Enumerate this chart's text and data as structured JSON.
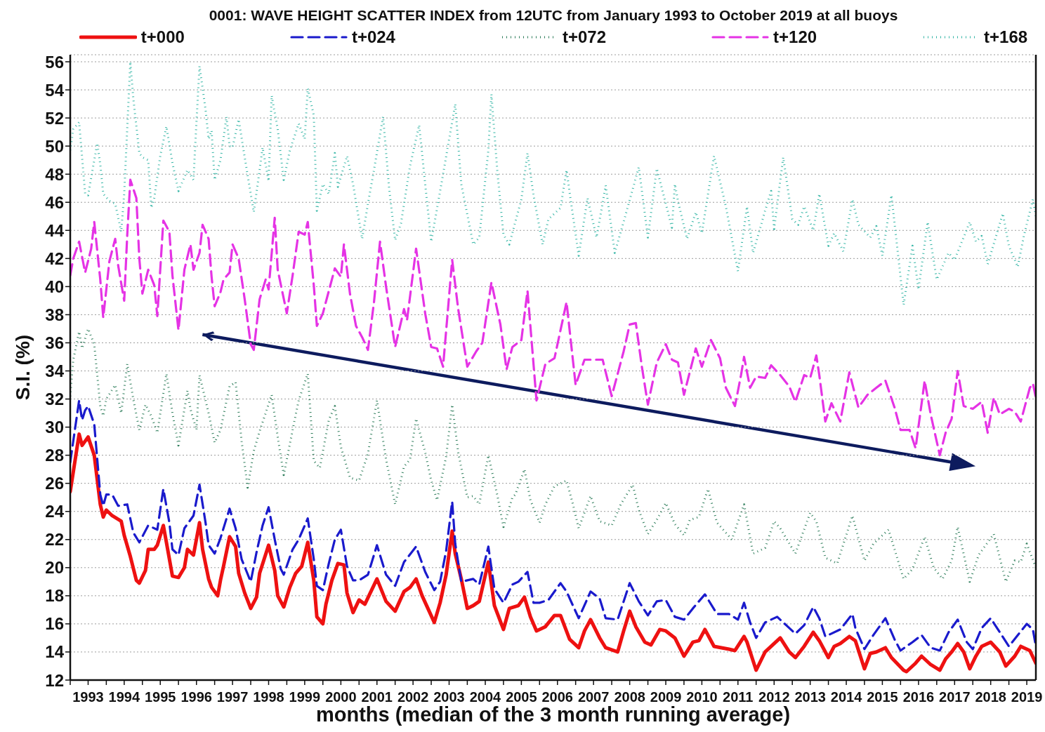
{
  "chart_data": {
    "type": "line",
    "title": "0001: WAVE HEIGHT SCATTER INDEX from 12UTC from January 1993 to October 2019 at all buoys",
    "xlabel": "months (median of the 3 month running average)",
    "ylabel": "S.I. (%)",
    "xlim": [
      "1993-01",
      "2019-10"
    ],
    "ylim": [
      12,
      56.5
    ],
    "xticks": [
      {
        "value": "1993-01",
        "label": null
      },
      {
        "value": "1993-07",
        "label": "1993"
      },
      {
        "value": "1994-01",
        "label": null
      },
      {
        "value": "1994-07",
        "label": "1994"
      },
      {
        "value": "1995-01",
        "label": null
      },
      {
        "value": "1995-07",
        "label": "1995"
      },
      {
        "value": "1996-01",
        "label": null
      },
      {
        "value": "1996-07",
        "label": "1996"
      },
      {
        "value": "1997-01",
        "label": null
      },
      {
        "value": "1997-07",
        "label": "1997"
      },
      {
        "value": "1998-01",
        "label": null
      },
      {
        "value": "1998-07",
        "label": "1998"
      },
      {
        "value": "1999-01",
        "label": null
      },
      {
        "value": "1999-07",
        "label": "1999"
      },
      {
        "value": "2000-01",
        "label": null
      },
      {
        "value": "2000-07",
        "label": "2000"
      },
      {
        "value": "2001-01",
        "label": null
      },
      {
        "value": "2001-07",
        "label": "2001"
      },
      {
        "value": "2002-01",
        "label": null
      },
      {
        "value": "2002-07",
        "label": "2002"
      },
      {
        "value": "2003-01",
        "label": null
      },
      {
        "value": "2003-07",
        "label": "2003"
      },
      {
        "value": "2004-01",
        "label": null
      },
      {
        "value": "2004-07",
        "label": "2004"
      },
      {
        "value": "2005-01",
        "label": null
      },
      {
        "value": "2005-07",
        "label": "2005"
      },
      {
        "value": "2006-01",
        "label": null
      },
      {
        "value": "2006-07",
        "label": "2006"
      },
      {
        "value": "2007-01",
        "label": null
      },
      {
        "value": "2007-07",
        "label": "2007"
      },
      {
        "value": "2008-01",
        "label": null
      },
      {
        "value": "2008-07",
        "label": "2008"
      },
      {
        "value": "2009-01",
        "label": null
      },
      {
        "value": "2009-07",
        "label": "2009"
      },
      {
        "value": "2010-01",
        "label": null
      },
      {
        "value": "2010-07",
        "label": "2010"
      },
      {
        "value": "2011-01",
        "label": null
      },
      {
        "value": "2011-07",
        "label": "2011"
      },
      {
        "value": "2012-01",
        "label": null
      },
      {
        "value": "2012-07",
        "label": "2012"
      },
      {
        "value": "2013-01",
        "label": null
      },
      {
        "value": "2013-07",
        "label": "2013"
      },
      {
        "value": "2014-01",
        "label": null
      },
      {
        "value": "2014-07",
        "label": "2014"
      },
      {
        "value": "2015-01",
        "label": null
      },
      {
        "value": "2015-07",
        "label": "2015"
      },
      {
        "value": "2016-01",
        "label": null
      },
      {
        "value": "2016-07",
        "label": "2016"
      },
      {
        "value": "2017-01",
        "label": null
      },
      {
        "value": "2017-07",
        "label": "2017"
      },
      {
        "value": "2018-01",
        "label": null
      },
      {
        "value": "2018-07",
        "label": "2018"
      },
      {
        "value": "2019-01",
        "label": null
      },
      {
        "value": "2019-07",
        "label": "2019"
      }
    ],
    "yticks": [
      12,
      14,
      16,
      18,
      20,
      22,
      24,
      26,
      28,
      30,
      32,
      34,
      36,
      38,
      40,
      42,
      44,
      46,
      48,
      50,
      52,
      54,
      56
    ],
    "grid": true,
    "legend": "top",
    "marker": "none",
    "series": [
      {
        "name": "t+000",
        "color": "#ee1111",
        "line_style": "solid",
        "x": [
          "1993-01",
          "1993-04",
          "1993-05",
          "1993-07",
          "1993-09",
          "1993-11",
          "1993-12",
          "1994-01",
          "1994-03",
          "1994-06",
          "1994-07",
          "1994-09",
          "1994-11",
          "1994-12",
          "1995-02",
          "1995-03",
          "1995-05",
          "1995-06",
          "1995-08",
          "1995-09",
          "1995-11",
          "1996-01",
          "1996-03",
          "1996-04",
          "1996-06",
          "1996-08",
          "1996-09",
          "1996-11",
          "1996-12",
          "1997-02",
          "1997-03",
          "1997-04",
          "1997-06",
          "1997-08",
          "1997-09",
          "1997-11",
          "1998-01",
          "1998-03",
          "1998-04",
          "1998-07",
          "1998-09",
          "1998-10",
          "1998-12",
          "1999-02",
          "1999-04",
          "1999-06",
          "1999-08",
          "1999-10",
          "1999-11",
          "2000-01",
          "2000-02",
          "2000-04",
          "2000-06",
          "2000-08",
          "2000-09",
          "2000-11",
          "2001-01",
          "2001-03",
          "2001-07",
          "2001-10",
          "2002-01",
          "2002-04",
          "2002-06",
          "2002-08",
          "2002-10",
          "2003-02",
          "2003-04",
          "2003-06",
          "2003-08",
          "2003-09",
          "2003-11",
          "2004-01",
          "2004-03",
          "2004-05",
          "2004-08",
          "2004-10",
          "2005-01",
          "2005-03",
          "2005-06",
          "2005-08",
          "2005-10",
          "2005-12",
          "2006-03",
          "2006-06",
          "2006-08",
          "2006-11",
          "2007-02",
          "2007-04",
          "2007-06",
          "2007-09",
          "2007-11",
          "2008-03",
          "2008-05",
          "2008-07",
          "2008-09",
          "2008-12",
          "2009-02",
          "2009-05",
          "2009-07",
          "2009-10",
          "2010-01",
          "2010-04",
          "2010-06",
          "2010-08",
          "2010-11",
          "2011-04",
          "2011-06",
          "2011-09",
          "2011-10",
          "2012-01",
          "2012-04",
          "2012-09",
          "2012-12",
          "2013-02",
          "2013-05",
          "2013-08",
          "2013-10",
          "2014-01",
          "2014-03",
          "2014-05",
          "2014-08",
          "2014-10",
          "2015-01",
          "2015-03",
          "2015-05",
          "2015-08",
          "2015-10",
          "2016-02",
          "2016-03",
          "2016-06",
          "2016-08",
          "2016-11",
          "2017-02",
          "2017-04",
          "2017-06",
          "2017-08",
          "2017-10",
          "2017-12",
          "2018-02",
          "2018-04",
          "2018-07",
          "2018-10",
          "2018-12",
          "2019-03",
          "2019-05",
          "2019-08",
          "2019-10"
        ],
        "values": [
          25.4,
          29.5,
          28.7,
          29.3,
          28.0,
          24.5,
          23.6,
          24.1,
          23.7,
          23.3,
          22.3,
          20.8,
          19.1,
          18.9,
          19.8,
          21.3,
          21.3,
          21.6,
          23.0,
          21.8,
          19.4,
          19.3,
          20.0,
          21.3,
          20.9,
          23.2,
          21.3,
          19.2,
          18.6,
          18.0,
          19.1,
          20.1,
          22.2,
          21.5,
          19.6,
          18.2,
          17.1,
          17.9,
          19.6,
          21.6,
          19.8,
          18.0,
          17.2,
          18.6,
          19.6,
          20.1,
          21.8,
          19.1,
          16.5,
          16.0,
          17.4,
          19.1,
          20.3,
          20.2,
          18.2,
          16.8,
          17.7,
          17.4,
          19.2,
          17.6,
          16.9,
          18.3,
          18.6,
          19.2,
          18.0,
          16.1,
          17.5,
          19.5,
          22.6,
          21.0,
          19.2,
          17.1,
          17.3,
          17.6,
          20.4,
          17.3,
          15.6,
          17.1,
          17.3,
          17.9,
          16.5,
          15.5,
          15.8,
          16.6,
          16.6,
          14.9,
          14.3,
          15.5,
          16.3,
          15.0,
          14.3,
          14.0,
          15.5,
          16.9,
          15.8,
          14.7,
          14.5,
          15.6,
          15.5,
          15.0,
          13.7,
          14.7,
          14.8,
          15.6,
          14.4,
          14.2,
          14.1,
          15.1,
          14.7,
          12.7,
          14.0,
          15.0,
          14.0,
          13.6,
          14.4,
          15.4,
          14.8,
          13.6,
          14.4,
          14.6,
          15.1,
          14.8,
          12.8,
          13.9,
          14.0,
          14.3,
          13.6,
          12.7,
          12.6,
          13.2,
          13.7,
          13.1,
          12.7,
          13.5,
          14.0,
          14.6,
          14.0,
          12.8,
          13.7,
          14.4,
          14.7,
          14.0,
          13.0,
          13.7,
          14.4,
          14.1,
          13.2
        ]
      },
      {
        "name": "t+024",
        "color": "#1a1acc",
        "line_style": "dashed",
        "x": [
          "1993-01",
          "1993-04",
          "1993-05",
          "1993-06",
          "1993-07",
          "1993-09",
          "1993-11",
          "1993-12",
          "1994-01",
          "1994-03",
          "1994-05",
          "1994-08",
          "1994-10",
          "1994-12",
          "1995-03",
          "1995-06",
          "1995-08",
          "1995-10",
          "1995-11",
          "1996-01",
          "1996-03",
          "1996-06",
          "1996-08",
          "1996-10",
          "1996-11",
          "1997-01",
          "1997-03",
          "1997-06",
          "1997-08",
          "1997-10",
          "1998-01",
          "1998-03",
          "1998-05",
          "1998-07",
          "1998-09",
          "1998-11",
          "1998-12",
          "1999-03",
          "1999-05",
          "1999-08",
          "1999-10",
          "1999-11",
          "2000-01",
          "2000-03",
          "2000-05",
          "2000-07",
          "2000-09",
          "2000-11",
          "2001-01",
          "2001-04",
          "2001-07",
          "2001-10",
          "2002-01",
          "2002-04",
          "2002-08",
          "2002-11",
          "2003-02",
          "2003-04",
          "2003-06",
          "2003-08",
          "2003-09",
          "2003-11",
          "2004-03",
          "2004-05",
          "2004-08",
          "2004-10",
          "2005-01",
          "2005-04",
          "2005-06",
          "2005-09",
          "2005-11",
          "2006-01",
          "2006-04",
          "2006-08",
          "2006-10",
          "2007-02",
          "2007-06",
          "2007-09",
          "2007-11",
          "2008-03",
          "2008-07",
          "2008-10",
          "2009-01",
          "2009-04",
          "2009-07",
          "2009-10",
          "2010-01",
          "2010-04",
          "2010-08",
          "2010-12",
          "2011-04",
          "2011-07",
          "2011-09",
          "2011-11",
          "2012-01",
          "2012-04",
          "2012-08",
          "2012-11",
          "2013-02",
          "2013-05",
          "2013-08",
          "2013-10",
          "2013-12",
          "2014-05",
          "2014-09",
          "2014-10",
          "2015-01",
          "2015-04",
          "2015-08",
          "2015-11",
          "2016-01",
          "2016-05",
          "2016-08",
          "2016-11",
          "2017-02",
          "2017-05",
          "2017-08",
          "2017-11",
          "2018-01",
          "2018-04",
          "2018-07",
          "2018-10",
          "2019-01",
          "2019-04",
          "2019-07",
          "2019-09",
          "2019-10"
        ],
        "values": [
          27.5,
          31.9,
          30.5,
          31.2,
          31.5,
          30.2,
          25.2,
          24.4,
          25.2,
          25.2,
          24.4,
          24.5,
          22.5,
          21.8,
          23.0,
          22.7,
          25.6,
          23.2,
          21.3,
          20.9,
          22.8,
          23.7,
          25.9,
          23.2,
          21.6,
          21.0,
          22.1,
          24.2,
          22.8,
          20.6,
          19.0,
          21.1,
          23.0,
          24.3,
          22.0,
          19.9,
          19.5,
          21.3,
          22.0,
          23.5,
          20.6,
          18.7,
          18.4,
          20.3,
          22.0,
          22.7,
          20.1,
          19.1,
          19.1,
          19.5,
          21.6,
          19.5,
          18.7,
          20.4,
          21.5,
          19.7,
          18.4,
          19.0,
          21.2,
          24.7,
          21.7,
          19.0,
          19.2,
          18.8,
          21.5,
          18.5,
          17.5,
          18.8,
          19.0,
          19.7,
          17.5,
          17.5,
          17.7,
          18.9,
          18.3,
          16.4,
          18.3,
          17.8,
          16.4,
          16.3,
          18.9,
          17.6,
          16.6,
          17.6,
          17.7,
          16.5,
          16.3,
          17.1,
          18.1,
          16.7,
          16.7,
          16.3,
          17.5,
          16.1,
          15.0,
          16.1,
          16.5,
          15.9,
          15.3,
          15.9,
          17.2,
          16.4,
          15.1,
          15.6,
          16.7,
          15.7,
          14.2,
          15.2,
          16.4,
          14.9,
          14.1,
          14.7,
          15.2,
          14.3,
          14.1,
          15.4,
          16.3,
          14.7,
          14.2,
          15.7,
          16.4,
          15.4,
          14.4,
          15.2,
          16.0,
          15.6,
          14.4
        ]
      },
      {
        "name": "t+072",
        "color": "#2e7d5b",
        "line_style": "dotted",
        "x": [
          "1993-01",
          "1993-02",
          "1993-04",
          "1993-05",
          "1993-07",
          "1993-09",
          "1993-11",
          "1993-12",
          "1994-01",
          "1994-04",
          "1994-06",
          "1994-08",
          "1994-10",
          "1994-12",
          "1995-02",
          "1995-04",
          "1995-06",
          "1995-09",
          "1995-11",
          "1996-01",
          "1996-04",
          "1996-05",
          "1996-07",
          "1996-08",
          "1996-11",
          "1997-01",
          "1997-03",
          "1997-06",
          "1997-08",
          "1997-10",
          "1997-12",
          "1998-02",
          "1998-04",
          "1998-08",
          "1998-10",
          "1998-12",
          "1999-03",
          "1999-05",
          "1999-08",
          "1999-10",
          "1999-12",
          "2000-03",
          "2000-05",
          "2000-07",
          "2000-10",
          "2001-01",
          "2001-04",
          "2001-07",
          "2001-10",
          "2002-01",
          "2002-04",
          "2002-06",
          "2002-08",
          "2002-11",
          "2003-01",
          "2003-03",
          "2003-06",
          "2003-08",
          "2003-10",
          "2004-01",
          "2004-03",
          "2004-05",
          "2004-08",
          "2004-11",
          "2005-01",
          "2005-04",
          "2005-05",
          "2005-08",
          "2005-10",
          "2006-01",
          "2006-03",
          "2006-06",
          "2006-10",
          "2006-12",
          "2007-02",
          "2007-06",
          "2007-09",
          "2008-01",
          "2008-04",
          "2008-08",
          "2008-10",
          "2009-01",
          "2009-04",
          "2009-07",
          "2009-10",
          "2010-01",
          "2010-03",
          "2010-06",
          "2010-09",
          "2010-12",
          "2011-05",
          "2011-09",
          "2011-12",
          "2012-04",
          "2012-07",
          "2012-09",
          "2013-02",
          "2013-07",
          "2013-09",
          "2013-12",
          "2014-04",
          "2014-09",
          "2015-01",
          "2015-04",
          "2015-09",
          "2016-02",
          "2016-05",
          "2016-09",
          "2016-12",
          "2017-03",
          "2017-06",
          "2017-08",
          "2017-12",
          "2018-03",
          "2018-08",
          "2018-12",
          "2019-03",
          "2019-05",
          "2019-07",
          "2019-10"
        ],
        "values": [
          32.2,
          34.8,
          36.8,
          35.6,
          37.0,
          35.9,
          31.5,
          30.8,
          32.0,
          33.0,
          31.0,
          34.5,
          32.0,
          29.8,
          31.6,
          30.8,
          29.6,
          33.8,
          31.0,
          28.7,
          32.6,
          31.3,
          29.8,
          33.7,
          31.0,
          28.9,
          29.8,
          32.9,
          33.2,
          29.0,
          25.7,
          28.3,
          29.7,
          32.3,
          29.3,
          26.6,
          29.8,
          31.9,
          33.8,
          27.6,
          27.1,
          30.5,
          31.5,
          28.6,
          26.4,
          26.2,
          28.1,
          31.9,
          27.7,
          24.5,
          27.2,
          27.7,
          30.6,
          28.2,
          26.2,
          24.8,
          27.9,
          31.6,
          28.2,
          25.0,
          25.1,
          24.5,
          28.0,
          25.1,
          22.9,
          25.0,
          25.2,
          27.0,
          24.8,
          23.2,
          24.5,
          25.8,
          26.2,
          24.6,
          22.8,
          25.1,
          23.3,
          23.0,
          24.5,
          25.9,
          24.1,
          22.4,
          23.4,
          24.6,
          23.1,
          22.3,
          23.4,
          23.6,
          25.6,
          23.2,
          22.0,
          24.5,
          21.0,
          21.4,
          23.3,
          22.8,
          21.0,
          23.9,
          23.3,
          20.7,
          20.3,
          23.7,
          20.5,
          21.7,
          22.7,
          19.2,
          19.9,
          22.2,
          20.0,
          19.2,
          20.5,
          22.9,
          19.0,
          20.9,
          22.4,
          19.0,
          20.5,
          20.4,
          21.7,
          20.0
        ]
      },
      {
        "name": "t+120",
        "color": "#e533e5",
        "line_style": "dashed",
        "x": [
          "1993-01",
          "1993-02",
          "1993-04",
          "1993-06",
          "1993-08",
          "1993-09",
          "1993-11",
          "1993-12",
          "1994-02",
          "1994-04",
          "1994-05",
          "1994-07",
          "1994-08",
          "1994-09",
          "1994-11",
          "1994-12",
          "1995-01",
          "1995-03",
          "1995-05",
          "1995-06",
          "1995-08",
          "1995-10",
          "1995-11",
          "1996-01",
          "1996-03",
          "1996-05",
          "1996-06",
          "1996-08",
          "1996-09",
          "1996-11",
          "1996-12",
          "1997-01",
          "1997-03",
          "1997-04",
          "1997-06",
          "1997-07",
          "1997-09",
          "1997-11",
          "1998-01",
          "1998-02",
          "1998-04",
          "1998-06",
          "1998-07",
          "1998-09",
          "1998-10",
          "1999-01",
          "1999-03",
          "1999-05",
          "1999-07",
          "1999-08",
          "1999-10",
          "1999-11",
          "2000-01",
          "2000-05",
          "2000-07",
          "2000-08",
          "2000-10",
          "2000-12",
          "2001-02",
          "2001-04",
          "2001-06",
          "2001-08",
          "2001-10",
          "2002-01",
          "2002-04",
          "2002-05",
          "2002-08",
          "2002-11",
          "2003-01",
          "2003-03",
          "2003-05",
          "2003-08",
          "2003-10",
          "2004-01",
          "2004-04",
          "2004-06",
          "2004-09",
          "2004-12",
          "2005-02",
          "2005-04",
          "2005-07",
          "2005-09",
          "2005-12",
          "2006-03",
          "2006-06",
          "2006-10",
          "2007-01",
          "2007-04",
          "2007-07",
          "2007-10",
          "2008-01",
          "2008-05",
          "2008-07",
          "2008-09",
          "2008-11",
          "2009-01",
          "2009-04",
          "2009-07",
          "2009-09",
          "2009-11",
          "2010-01",
          "2010-05",
          "2010-07",
          "2010-10",
          "2011-01",
          "2011-03",
          "2011-06",
          "2011-08",
          "2011-09",
          "2011-11",
          "2012-01",
          "2012-04",
          "2012-06",
          "2012-09",
          "2012-12",
          "2013-02",
          "2013-05",
          "2013-07",
          "2013-09",
          "2013-10",
          "2013-12",
          "2014-02",
          "2014-05",
          "2014-08",
          "2014-11",
          "2015-02",
          "2015-05",
          "2015-08",
          "2015-11",
          "2016-01",
          "2016-04",
          "2016-06",
          "2016-09",
          "2016-11",
          "2017-02",
          "2017-04",
          "2017-06",
          "2017-08",
          "2017-10",
          "2018-01",
          "2018-04",
          "2018-06",
          "2018-08",
          "2018-10",
          "2019-01",
          "2019-03",
          "2019-05",
          "2019-08",
          "2019-09",
          "2019-10"
        ],
        "values": [
          40.8,
          42.0,
          43.2,
          41.0,
          42.7,
          44.6,
          40.5,
          37.8,
          41.8,
          43.4,
          41.5,
          39.0,
          43.7,
          47.6,
          46.3,
          42.0,
          39.5,
          41.2,
          40.1,
          37.9,
          44.7,
          43.9,
          40.8,
          36.9,
          41.2,
          43.0,
          41.2,
          42.4,
          44.4,
          43.4,
          40.7,
          38.6,
          39.6,
          40.5,
          41.0,
          43.0,
          42.0,
          39.1,
          35.9,
          35.5,
          39.1,
          40.5,
          39.8,
          44.9,
          41.2,
          38.1,
          40.8,
          43.9,
          43.7,
          44.6,
          40.1,
          37.2,
          38.1,
          41.3,
          40.7,
          43.0,
          39.5,
          37.2,
          36.4,
          35.5,
          38.9,
          43.2,
          40.0,
          35.7,
          38.4,
          37.6,
          42.7,
          38.1,
          35.7,
          35.6,
          34.3,
          41.9,
          38.4,
          34.3,
          35.4,
          36.0,
          40.3,
          37.3,
          34.1,
          35.7,
          36.2,
          39.7,
          31.9,
          34.5,
          34.9,
          38.9,
          33.0,
          34.8,
          34.8,
          34.8,
          32.2,
          35.4,
          37.3,
          37.4,
          34.3,
          31.6,
          34.6,
          35.9,
          34.8,
          34.6,
          32.3,
          35.6,
          34.3,
          36.2,
          34.9,
          32.8,
          31.5,
          33.7,
          35.0,
          32.8,
          33.6,
          33.5,
          34.4,
          33.7,
          32.9,
          31.8,
          33.7,
          33.5,
          35.1,
          33.7,
          30.4,
          31.7,
          30.4,
          33.9,
          31.4,
          32.3,
          32.8,
          33.3,
          31.4,
          29.8,
          29.8,
          28.5,
          33.3,
          30.9,
          28.0,
          29.6,
          30.6,
          34.0,
          31.5,
          31.3,
          31.8,
          29.6,
          32.1,
          30.9,
          31.3,
          31.1,
          30.4,
          32.8,
          33.1,
          32.1
        ]
      },
      {
        "name": "t+168",
        "color": "#33b5a5",
        "line_style": "dotted",
        "x": [
          "1993-01",
          "1993-02",
          "1993-04",
          "1993-05",
          "1993-06",
          "1993-07",
          "1993-10",
          "1993-11",
          "1993-12",
          "1994-02",
          "1994-04",
          "1994-06",
          "1994-07",
          "1994-09",
          "1994-10",
          "1994-12",
          "1995-01",
          "1995-03",
          "1995-04",
          "1995-05",
          "1995-07",
          "1995-09",
          "1995-11",
          "1996-01",
          "1996-04",
          "1996-06",
          "1996-07",
          "1996-08",
          "1996-10",
          "1996-11",
          "1996-12",
          "1997-01",
          "1997-03",
          "1997-05",
          "1997-06",
          "1997-07",
          "1997-09",
          "1997-11",
          "1998-01",
          "1998-02",
          "1998-04",
          "1998-05",
          "1998-07",
          "1998-08",
          "1998-10",
          "1998-12",
          "1999-02",
          "1999-05",
          "1999-07",
          "1999-08",
          "1999-10",
          "1999-11",
          "2000-01",
          "2000-03",
          "2000-05",
          "2000-06",
          "2000-09",
          "2000-11",
          "2001-02",
          "2001-04",
          "2001-06",
          "2001-09",
          "2001-11",
          "2002-01",
          "2002-03",
          "2002-06",
          "2002-09",
          "2002-11",
          "2003-01",
          "2003-05",
          "2003-09",
          "2003-11",
          "2004-03",
          "2004-05",
          "2004-08",
          "2004-09",
          "2004-11",
          "2005-01",
          "2005-03",
          "2005-05",
          "2005-07",
          "2005-09",
          "2005-11",
          "2006-02",
          "2006-04",
          "2006-08",
          "2006-10",
          "2006-11",
          "2007-02",
          "2007-05",
          "2007-08",
          "2007-11",
          "2008-02",
          "2008-06",
          "2008-10",
          "2009-01",
          "2009-04",
          "2009-09",
          "2009-10",
          "2009-11",
          "2010-02",
          "2010-05",
          "2010-07",
          "2010-11",
          "2011-03",
          "2011-07",
          "2011-10",
          "2011-12",
          "2012-04",
          "2012-06",
          "2012-07",
          "2012-10",
          "2013-01",
          "2013-03",
          "2013-05",
          "2013-08",
          "2013-10",
          "2014-01",
          "2014-03",
          "2014-06",
          "2014-09",
          "2014-11",
          "2015-03",
          "2015-05",
          "2015-07",
          "2015-10",
          "2016-02",
          "2016-05",
          "2016-07",
          "2016-10",
          "2017-01",
          "2017-05",
          "2017-07",
          "2017-12",
          "2018-02",
          "2018-04",
          "2018-06",
          "2018-11",
          "2019-01",
          "2019-04",
          "2019-06",
          "2019-09",
          "2019-10"
        ],
        "values": [
          49.7,
          51.2,
          51.7,
          49.2,
          46.6,
          46.5,
          50.2,
          48.7,
          46.6,
          46.1,
          45.9,
          43.9,
          46.6,
          56.0,
          53.4,
          49.5,
          49.2,
          49.0,
          45.6,
          46.3,
          49.3,
          51.4,
          48.8,
          46.8,
          48.3,
          47.6,
          51.7,
          55.7,
          52.6,
          50.5,
          51.1,
          47.6,
          49.0,
          52.1,
          50.0,
          49.9,
          51.9,
          49.2,
          46.6,
          45.3,
          48.3,
          49.9,
          47.5,
          53.6,
          51.2,
          47.6,
          49.7,
          51.6,
          50.5,
          54.1,
          52.2,
          45.4,
          47.3,
          46.6,
          49.5,
          47.1,
          49.3,
          47.3,
          43.4,
          45.9,
          48.3,
          52.1,
          47.0,
          43.3,
          44.5,
          48.6,
          51.5,
          47.3,
          43.2,
          48.0,
          53.0,
          47.3,
          43.0,
          43.5,
          49.7,
          53.7,
          48.1,
          43.7,
          43.0,
          44.6,
          46.2,
          49.5,
          46.5,
          43.0,
          44.8,
          45.6,
          48.3,
          46.7,
          42.2,
          46.3,
          43.5,
          47.2,
          42.4,
          45.4,
          48.5,
          43.5,
          48.4,
          44.2,
          47.3,
          46.1,
          43.4,
          45.3,
          43.8,
          49.3,
          45.7,
          41.1,
          45.7,
          42.4,
          45.4,
          46.8,
          44.1,
          49.2,
          44.8,
          44.4,
          45.7,
          44.0,
          46.6,
          42.9,
          43.8,
          42.5,
          46.2,
          44.4,
          43.5,
          44.3,
          42.2,
          46.5,
          38.7,
          42.9,
          39.8,
          44.6,
          40.5,
          42.4,
          41.9,
          44.6,
          43.2,
          43.6,
          41.6,
          45.2,
          42.9,
          41.4,
          43.6,
          46.2,
          45.0
        ]
      }
    ]
  }
}
